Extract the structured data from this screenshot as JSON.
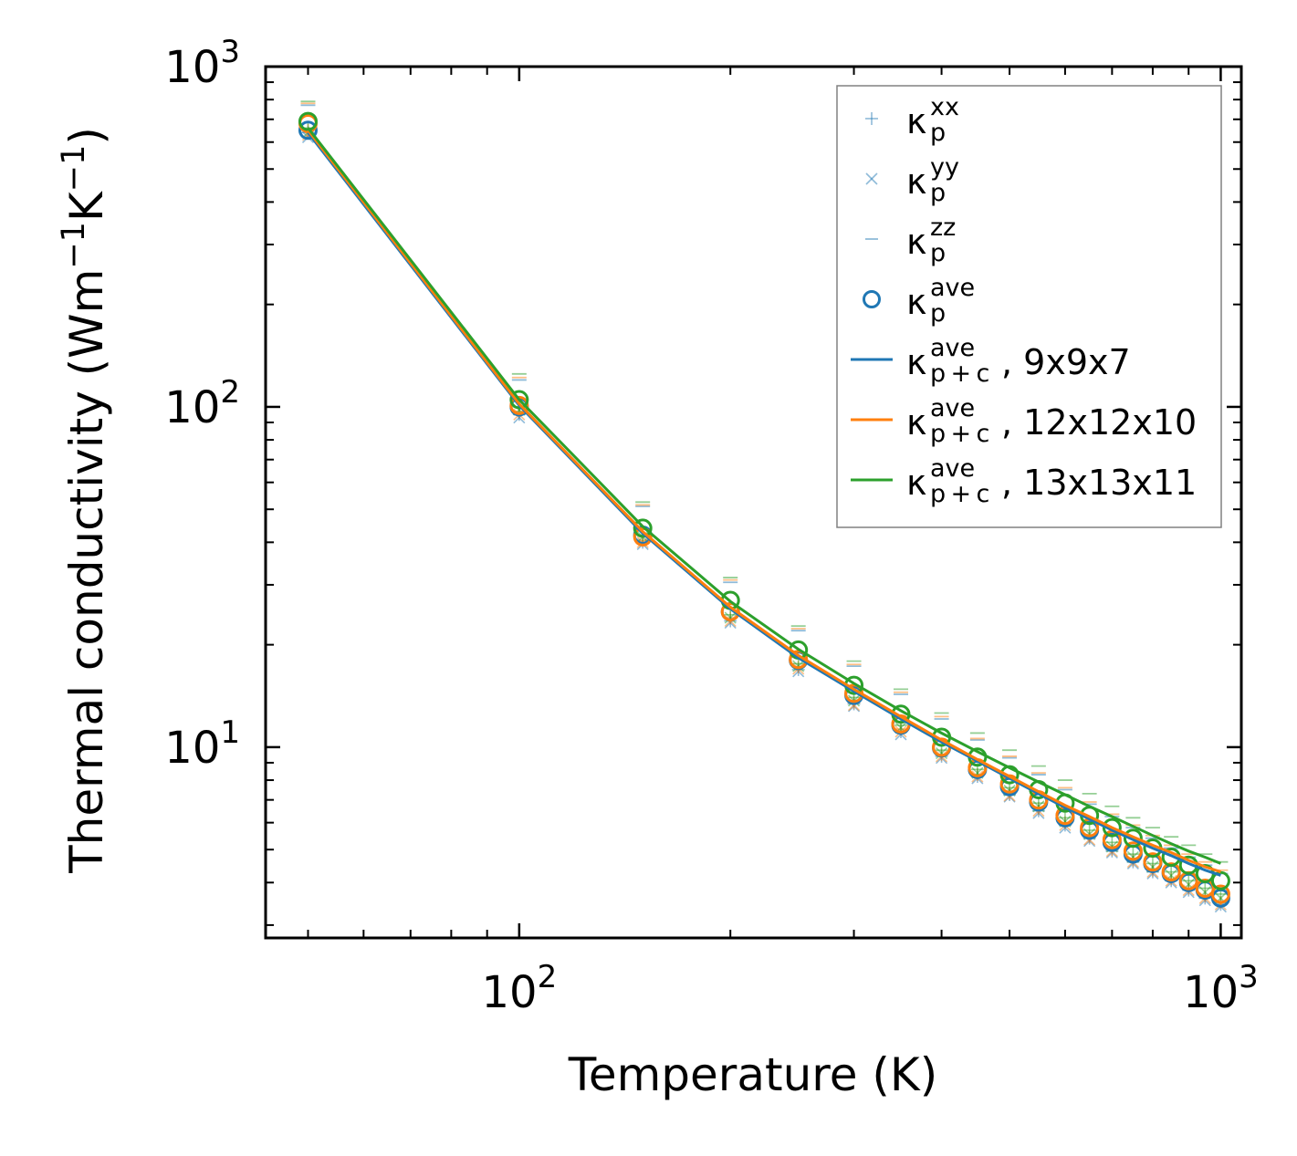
{
  "chart_data": {
    "type": "scatter",
    "xscale": "log",
    "yscale": "log",
    "xlim": [
      43.5,
      1070
    ],
    "ylim": [
      2.75,
      1000
    ],
    "xlabel": "Temperature (K)",
    "ylabel": {
      "base": "Thermal conductivity (Wm",
      "sup1": "−1",
      "mid": "K",
      "sup2": "−1",
      "end": ")"
    },
    "xticks": [
      {
        "value": 100,
        "base": "10",
        "exp": "2"
      },
      {
        "value": 1000,
        "base": "10",
        "exp": "3"
      }
    ],
    "yticks": [
      {
        "value": 10,
        "base": "10",
        "exp": "1"
      },
      {
        "value": 100,
        "base": "10",
        "exp": "2"
      },
      {
        "value": 1000,
        "base": "10",
        "exp": "3"
      }
    ],
    "colors": {
      "9x9x7": "#1f77b4",
      "12x12x10": "#ff7f0e",
      "13x13x11": "#2ca02c"
    },
    "temperatures": [
      50,
      100,
      150,
      200,
      250,
      300,
      350,
      400,
      450,
      500,
      550,
      600,
      650,
      700,
      750,
      800,
      850,
      900,
      950,
      1000
    ],
    "series": [
      {
        "name": "9x9x7",
        "color": "#1f77b4",
        "kxx": [
          640,
          95,
          40,
          23.5,
          16.9,
          13.4,
          11.1,
          9.4,
          8.2,
          7.25,
          6.5,
          5.9,
          5.4,
          4.95,
          4.6,
          4.3,
          4.05,
          3.8,
          3.6,
          3.45
        ],
        "kyy": [
          620,
          93,
          39.5,
          23.2,
          16.7,
          13.2,
          10.9,
          9.3,
          8.1,
          7.15,
          6.4,
          5.8,
          5.3,
          4.9,
          4.55,
          4.25,
          4.0,
          3.75,
          3.55,
          3.4
        ],
        "kzz": [
          770,
          120,
          51,
          30.5,
          22,
          17.3,
          14.3,
          12.1,
          10.5,
          9.3,
          8.3,
          7.5,
          6.8,
          6.25,
          5.8,
          5.4,
          5.05,
          4.75,
          4.5,
          4.25
        ],
        "kave": [
          650,
          100,
          42,
          25,
          18,
          14.2,
          11.6,
          9.95,
          8.6,
          7.65,
          6.9,
          6.2,
          5.7,
          5.25,
          4.85,
          4.55,
          4.25,
          4.0,
          3.8,
          3.6
        ],
        "kpc": [
          640,
          101,
          42.5,
          25.5,
          18.3,
          14.6,
          12.1,
          10.35,
          9.1,
          8.1,
          7.3,
          6.65,
          6.15,
          5.7,
          5.35,
          5.05,
          4.8,
          4.55,
          4.35,
          4.2
        ]
      },
      {
        "name": "12x12x10",
        "color": "#ff7f0e",
        "kxx": [
          650,
          97,
          40.5,
          24,
          17.2,
          13.5,
          11.3,
          9.5,
          8.3,
          7.3,
          6.6,
          6.0,
          5.45,
          5.0,
          4.65,
          4.35,
          4.1,
          3.85,
          3.65,
          3.5
        ],
        "kyy": [
          630,
          95,
          40,
          23.5,
          17,
          13.3,
          11.1,
          9.4,
          8.2,
          7.2,
          6.5,
          5.9,
          5.35,
          4.95,
          4.6,
          4.3,
          4.05,
          3.8,
          3.6,
          3.45
        ],
        "kzz": [
          780,
          122,
          51.5,
          31,
          22.3,
          17.5,
          14.5,
          12.3,
          10.6,
          9.4,
          8.4,
          7.6,
          6.9,
          6.35,
          5.9,
          5.5,
          5.15,
          4.85,
          4.6,
          4.35
        ],
        "kave": [
          680,
          101,
          41.5,
          25,
          18.1,
          14.4,
          11.7,
          10.0,
          8.7,
          7.8,
          7.0,
          6.3,
          5.8,
          5.35,
          4.95,
          4.6,
          4.3,
          4.05,
          3.85,
          3.7
        ],
        "kpc": [
          650,
          102,
          43,
          25.8,
          18.6,
          14.8,
          12.3,
          10.5,
          9.2,
          8.2,
          7.4,
          6.75,
          6.25,
          5.8,
          5.45,
          5.15,
          4.9,
          4.65,
          4.45,
          4.3
        ]
      },
      {
        "name": "13x13x11",
        "color": "#2ca02c",
        "kxx": [
          660,
          100,
          42,
          24.5,
          17.6,
          14,
          11.6,
          9.8,
          8.6,
          7.6,
          6.85,
          6.2,
          5.7,
          5.25,
          4.85,
          4.55,
          4.3,
          4.05,
          3.85,
          3.7
        ],
        "kyy": [
          640,
          98,
          41.5,
          24,
          17.3,
          13.7,
          11.4,
          9.6,
          8.4,
          7.45,
          6.7,
          6.05,
          5.55,
          5.1,
          4.75,
          4.45,
          4.2,
          3.95,
          3.75,
          3.6
        ],
        "kzz": [
          790,
          125,
          52.5,
          31.5,
          22.7,
          17.9,
          14.8,
          12.6,
          11.0,
          9.8,
          8.8,
          8.0,
          7.3,
          6.7,
          6.2,
          5.8,
          5.45,
          5.15,
          4.85,
          4.6
        ],
        "kave": [
          690,
          105,
          44,
          27,
          19.3,
          15.2,
          12.5,
          10.7,
          9.35,
          8.3,
          7.5,
          6.85,
          6.3,
          5.8,
          5.4,
          5.05,
          4.75,
          4.5,
          4.25,
          4.05
        ],
        "kpc": [
          660,
          105,
          44.5,
          26.8,
          19.4,
          15.4,
          12.8,
          11.0,
          9.7,
          8.7,
          7.9,
          7.25,
          6.7,
          6.25,
          5.85,
          5.5,
          5.2,
          4.95,
          4.75,
          4.55
        ]
      }
    ],
    "legend": {
      "location": "top-right",
      "entries": [
        {
          "marker": "plus",
          "base": "κ",
          "sub": "p",
          "sup": "xx",
          "suffix": ""
        },
        {
          "marker": "cross",
          "base": "κ",
          "sub": "p",
          "sup": "yy",
          "suffix": ""
        },
        {
          "marker": "hline",
          "base": "κ",
          "sub": "p",
          "sup": "zz",
          "suffix": ""
        },
        {
          "marker": "circle",
          "base": "κ",
          "sub": "p",
          "sup": "ave",
          "suffix": ""
        },
        {
          "marker": "line",
          "color": "#1f77b4",
          "base": "κ",
          "sub": "p + c",
          "sup": "ave",
          "suffix": ", 9x9x7"
        },
        {
          "marker": "line",
          "color": "#ff7f0e",
          "base": "κ",
          "sub": "p + c",
          "sup": "ave",
          "suffix": ", 12x12x10"
        },
        {
          "marker": "line",
          "color": "#2ca02c",
          "base": "κ",
          "sub": "p + c",
          "sup": "ave",
          "suffix": ", 13x13x11"
        }
      ]
    }
  }
}
